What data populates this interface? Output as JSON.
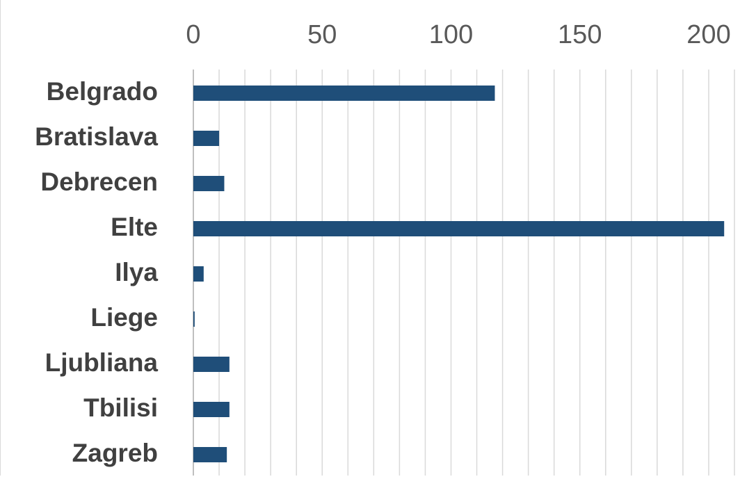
{
  "chart_data": {
    "type": "bar",
    "orientation": "horizontal",
    "title": "",
    "xlabel": "",
    "ylabel": "",
    "categories": [
      "Belgrado",
      "Bratislava",
      "Debrecen",
      "Elte",
      "Ilya",
      "Liege",
      "Ljubliana",
      "Tbilisi",
      "Zagreb"
    ],
    "values": [
      117,
      10,
      12,
      206,
      4,
      0.5,
      14,
      14,
      13
    ],
    "xlim": [
      0,
      210
    ],
    "x_ticks": [
      "0",
      "50",
      "100",
      "150",
      "200"
    ],
    "x_tick_values": [
      0,
      50,
      100,
      150,
      200
    ],
    "minor_grid_step": 10,
    "grid": true,
    "x_axis_position": "top",
    "bar_color": "#1f4e79"
  }
}
